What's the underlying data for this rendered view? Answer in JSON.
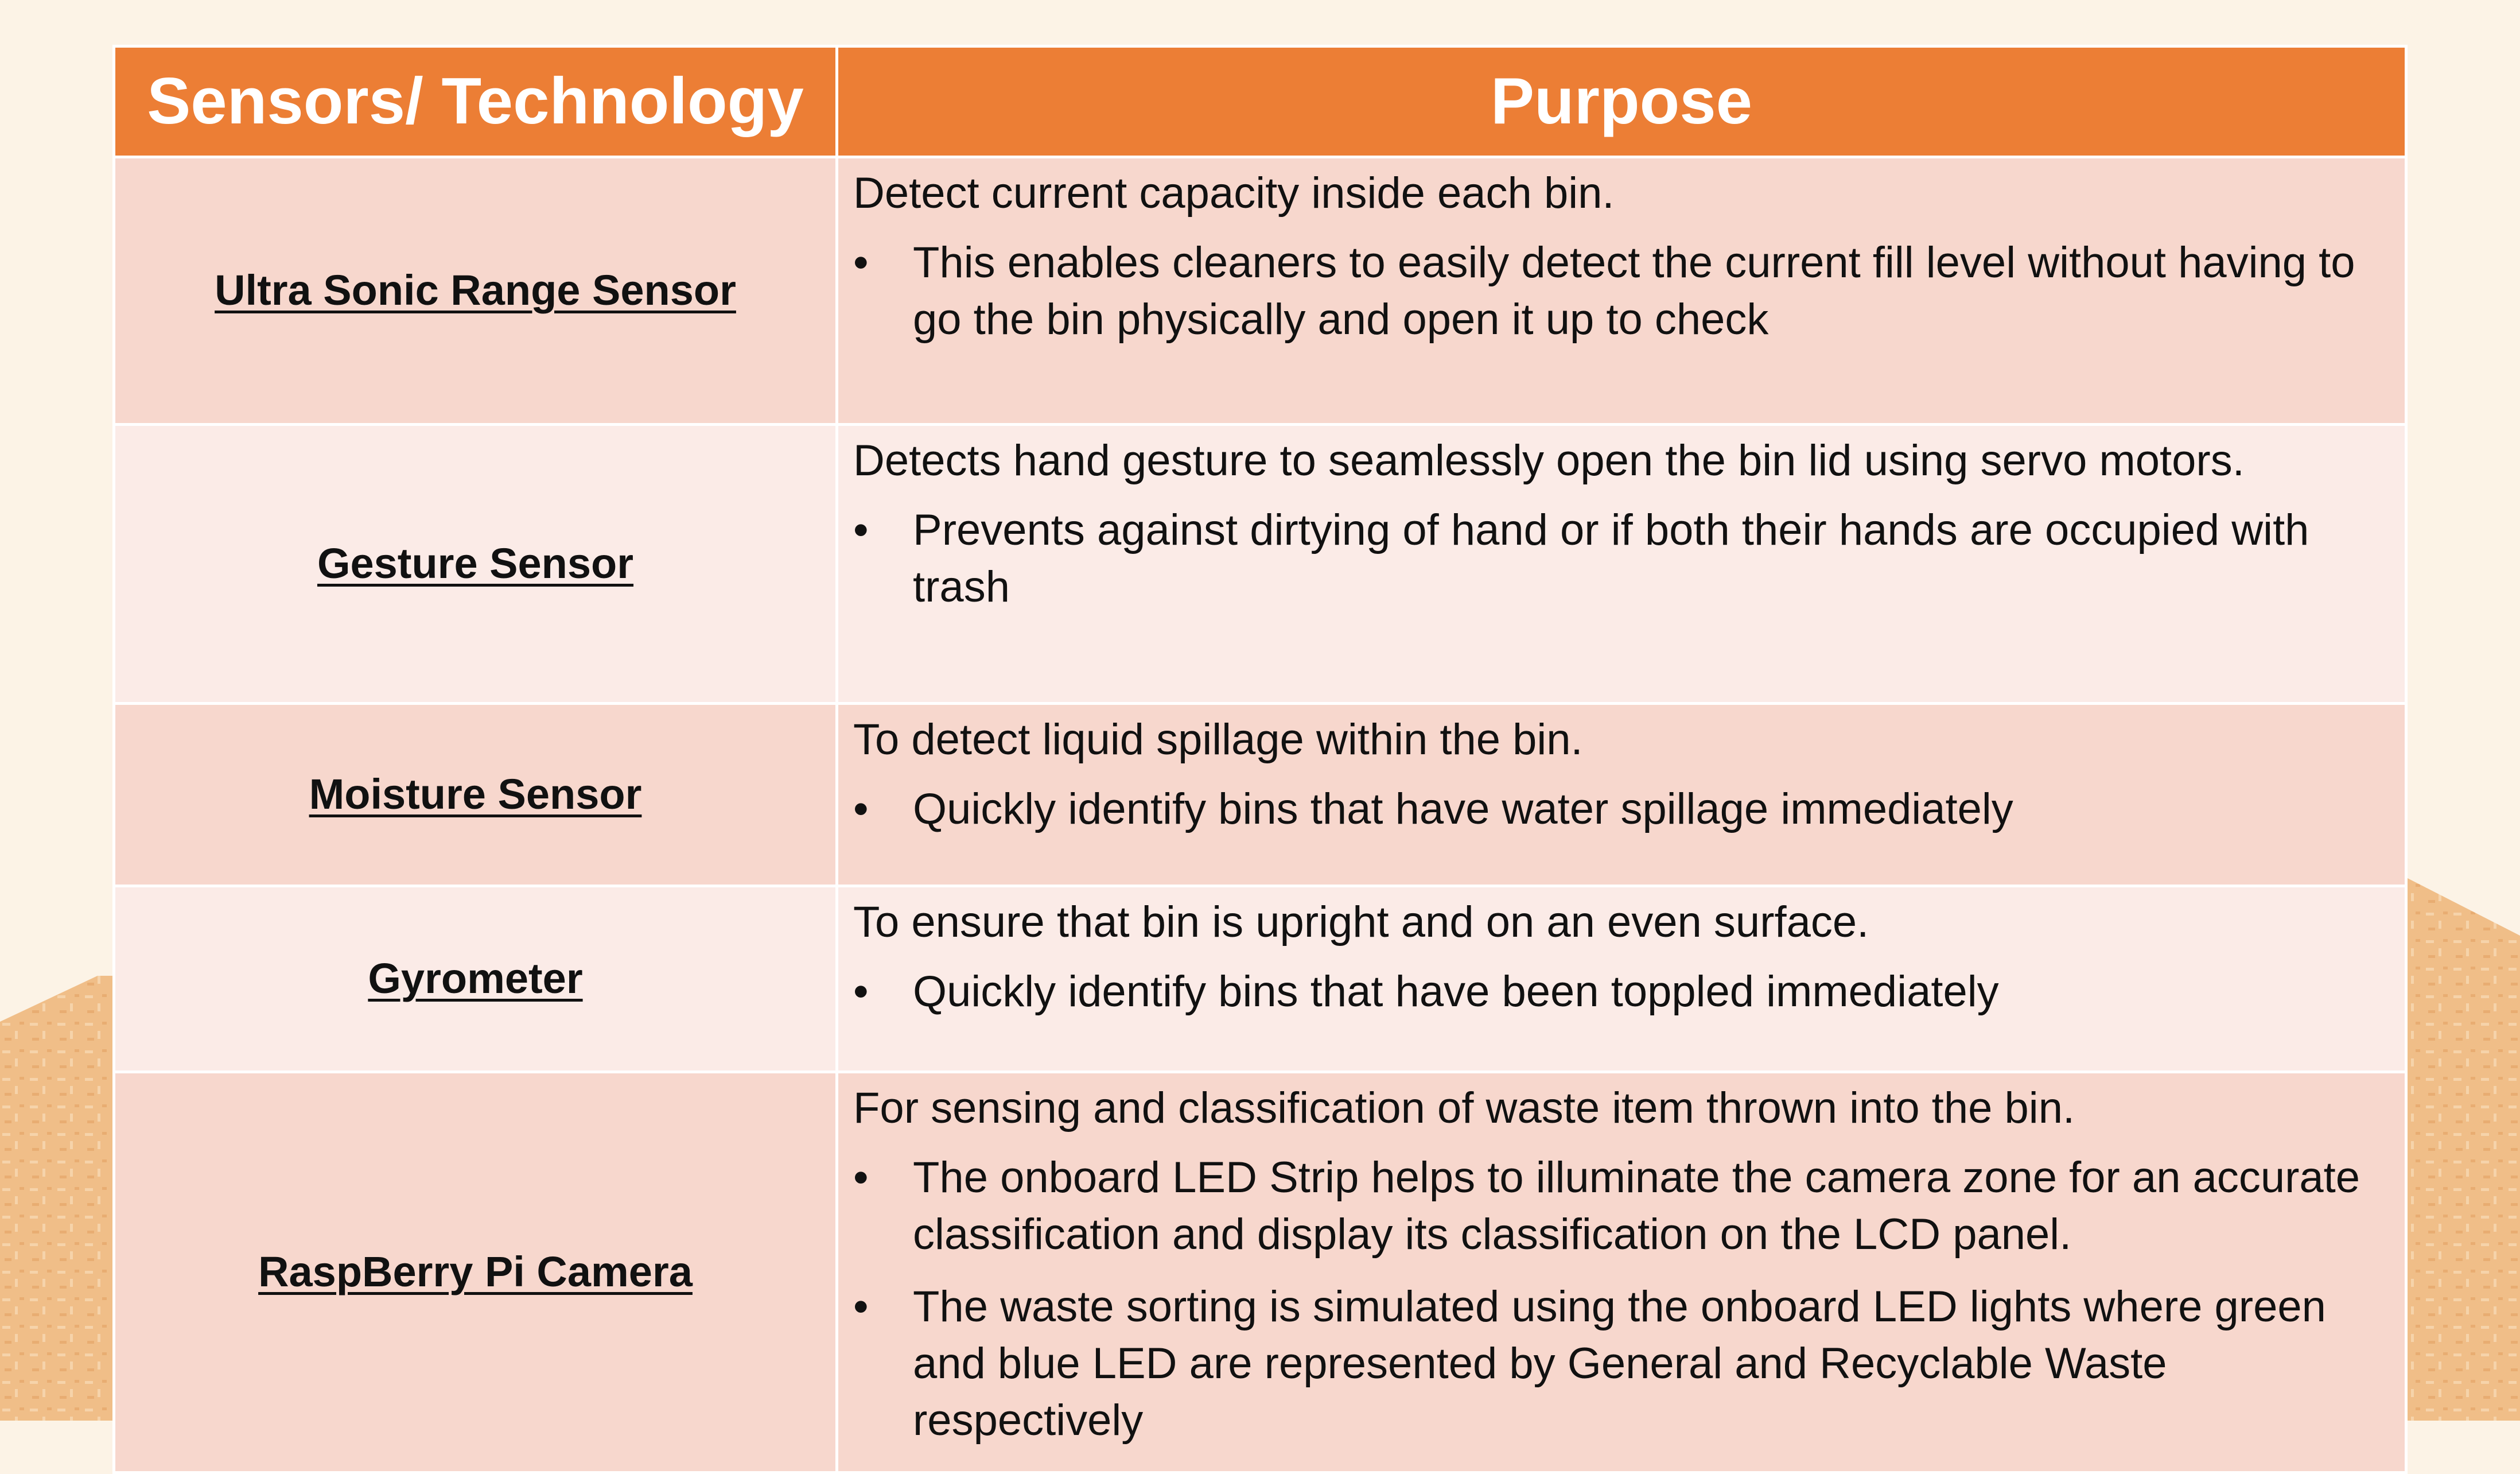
{
  "header": {
    "col1": "Sensors/ Technology",
    "col2": "Purpose"
  },
  "colors": {
    "header_bg": "#ec7e35",
    "row_dark": "#f7d7cd",
    "row_light": "#fbebe7",
    "page_bg": "#fcf3e6",
    "decor_sand": "#f0be88"
  },
  "rows": [
    {
      "sensor": "Ultra Sonic Range Sensor",
      "lead": "Detect current capacity inside each bin.",
      "bullets": [
        "This enables cleaners to easily detect the current fill level without having to go the bin physically and open it up to check"
      ]
    },
    {
      "sensor": "Gesture Sensor",
      "lead": "Detects hand gesture to seamlessly open the bin lid using servo motors.",
      "bullets": [
        "Prevents against dirtying of hand or if both their hands are occupied with trash"
      ]
    },
    {
      "sensor": "Moisture Sensor",
      "lead": "To detect liquid spillage within the bin.",
      "bullets": [
        "Quickly identify bins that have water spillage immediately"
      ]
    },
    {
      "sensor": "Gyrometer",
      "lead": "To ensure that bin is upright and on an even surface.",
      "bullets": [
        "Quickly identify bins that have been toppled immediately"
      ]
    },
    {
      "sensor": "RaspBerry Pi Camera",
      "lead": "For sensing and classification of waste item thrown into the bin.",
      "bullets": [
        "The onboard LED Strip helps to illuminate the camera zone for an accurate classification and display its classification on the LCD panel.",
        "The waste sorting is simulated using the onboard LED lights where green and blue LED are represented by General and Recyclable Waste respectively"
      ]
    }
  ]
}
